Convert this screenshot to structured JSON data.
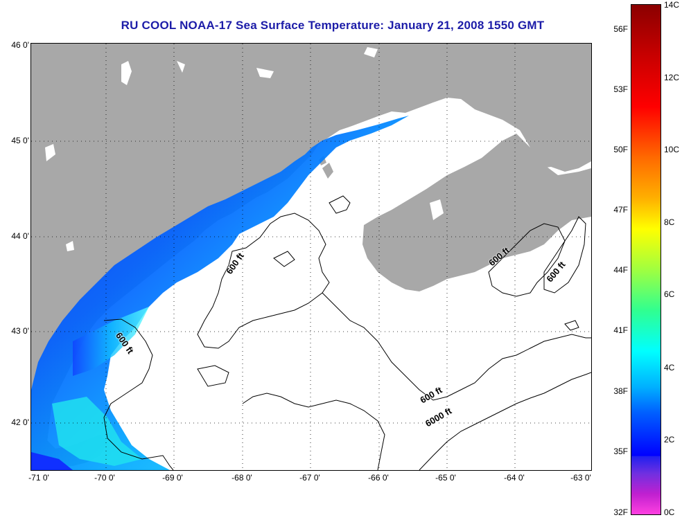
{
  "title": "RU COOL  NOAA-17  Sea Surface Temperature:  January 21, 2008 1550 GMT",
  "lat_labels": [
    "46 0'",
    "45 0'",
    "44 0'",
    "43 0'",
    "42 0'"
  ],
  "lon_labels": [
    "-71 0'",
    "-70 0'",
    "-69 0'",
    "-68 0'",
    "-67 0'",
    "-66 0'",
    "-65 0'",
    "-64 0'",
    "-63 0'"
  ],
  "contour_labels": [
    "600 ft",
    "600 ft",
    "600 ft",
    "600 ft",
    "600 ft",
    "6000 ft"
  ],
  "colorbar": {
    "fahrenheit": [
      "56F",
      "53F",
      "50F",
      "47F",
      "44F",
      "41F",
      "38F",
      "35F",
      "32F"
    ],
    "celsius": [
      "14C",
      "12C",
      "10C",
      "8C",
      "6C",
      "4C",
      "2C",
      "0C"
    ]
  },
  "colors": {
    "land": "#a8a8a8",
    "title": "#1c1ca8",
    "sst_cold": "#0000ff",
    "sst_mid": "#00ffff"
  }
}
